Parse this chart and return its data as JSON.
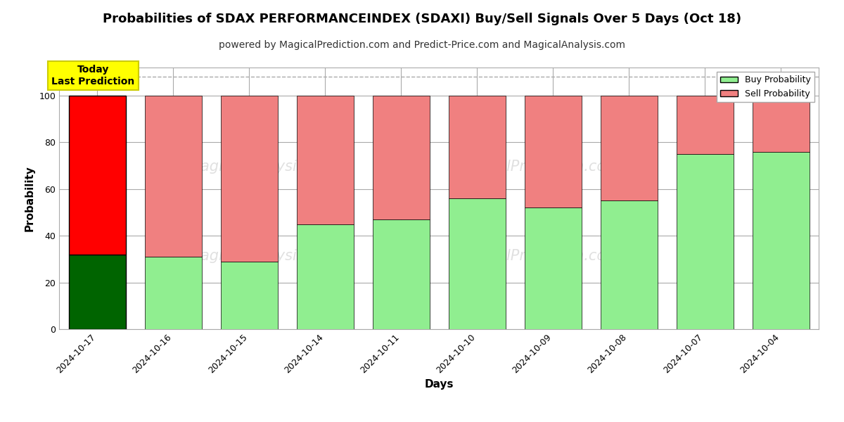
{
  "title": "Probabilities of SDAX PERFORMANCEINDEX (SDAXI) Buy/Sell Signals Over 5 Days (Oct 18)",
  "subtitle": "powered by MagicalPrediction.com and Predict-Price.com and MagicalAnalysis.com",
  "xlabel": "Days",
  "ylabel": "Probability",
  "categories": [
    "2024-10-17",
    "2024-10-16",
    "2024-10-15",
    "2024-10-14",
    "2024-10-11",
    "2024-10-10",
    "2024-10-09",
    "2024-10-08",
    "2024-10-07",
    "2024-10-04"
  ],
  "buy_values": [
    32,
    31,
    29,
    45,
    47,
    56,
    52,
    55,
    75,
    76
  ],
  "sell_values": [
    68,
    69,
    71,
    55,
    53,
    44,
    48,
    45,
    25,
    24
  ],
  "today_idx": 0,
  "buy_color_today": "#006400",
  "sell_color_today": "#FF0000",
  "buy_color_normal": "#90EE90",
  "sell_color_normal": "#F08080",
  "bar_edge_color": "#000000",
  "ylim": [
    0,
    112
  ],
  "yticks": [
    0,
    20,
    40,
    60,
    80,
    100
  ],
  "dashed_line_y": 108,
  "legend_buy_label": "Buy Probability",
  "legend_sell_label": "Sell Probability",
  "today_box_text": "Today\nLast Prediction",
  "today_box_bg": "#FFFF00",
  "today_box_border": "#CCCC00",
  "grid_color": "#AAAAAA",
  "background_color": "#FFFFFF",
  "title_fontsize": 13,
  "subtitle_fontsize": 10,
  "axis_label_fontsize": 11,
  "tick_fontsize": 9,
  "legend_fontsize": 9,
  "bar_width": 0.75
}
